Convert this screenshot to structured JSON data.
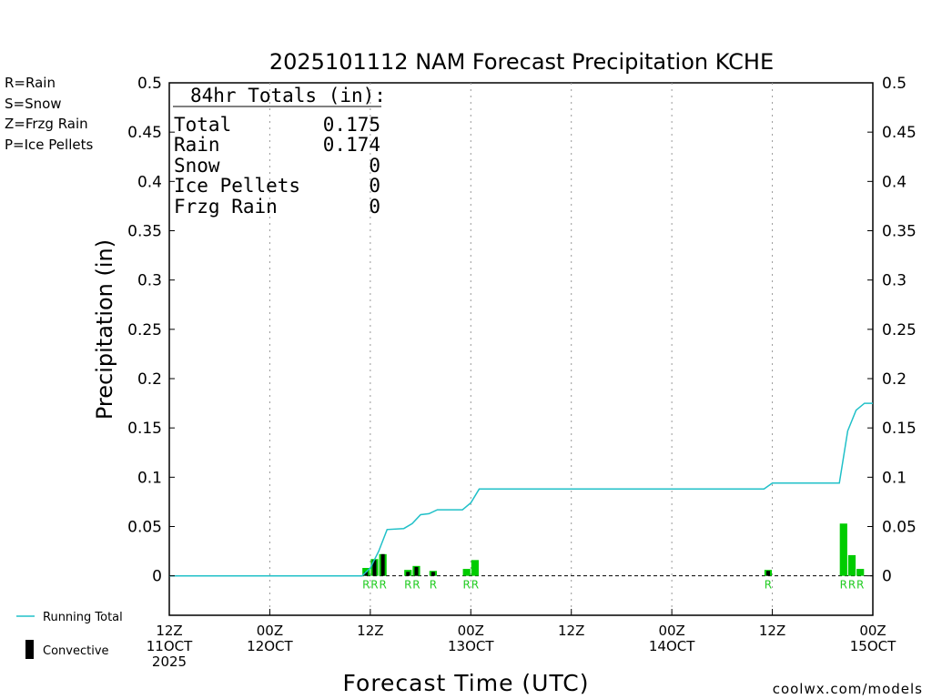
{
  "chart_data": {
    "type": "bar",
    "title": "2025101112 NAM Forecast Precipitation KCHE",
    "xlabel": "Forecast Time (UTC)",
    "ylabel": "Precipitation (in)",
    "ylim": [
      -0.04,
      0.5
    ],
    "xlim": [
      0,
      84
    ],
    "y_ticks": [
      0,
      0.05,
      0.1,
      0.15,
      0.2,
      0.25,
      0.3,
      0.35,
      0.4,
      0.45,
      0.5
    ],
    "y_tick_labels": [
      "0",
      "0.05",
      "0.1",
      "0.15",
      "0.2",
      "0.25",
      "0.3",
      "0.35",
      "0.4",
      "0.45",
      "0.5"
    ],
    "x_ticks": [
      {
        "hour": 0,
        "lines": [
          "12Z",
          "11OCT",
          "2025"
        ]
      },
      {
        "hour": 12,
        "lines": [
          "00Z",
          "12OCT"
        ]
      },
      {
        "hour": 24,
        "lines": [
          "12Z"
        ]
      },
      {
        "hour": 36,
        "lines": [
          "00Z",
          "13OCT"
        ]
      },
      {
        "hour": 48,
        "lines": [
          "12Z"
        ]
      },
      {
        "hour": 60,
        "lines": [
          "00Z",
          "14OCT"
        ]
      },
      {
        "hour": 72,
        "lines": [
          "12Z"
        ]
      },
      {
        "hour": 84,
        "lines": [
          "00Z",
          "15OCT"
        ]
      }
    ],
    "legend_types": [
      {
        "label": "R=Rain",
        "color": "#22cc22"
      },
      {
        "label": "S=Snow",
        "color": "#3355ee"
      },
      {
        "label": "Z=Frzg Rain",
        "color": "#ff8833"
      },
      {
        "label": "P=Ice Pellets",
        "color": "#ee22aa"
      }
    ],
    "legend_series": [
      {
        "label": "Running Total",
        "color": "#20c0c8"
      },
      {
        "label": "Convective",
        "color": "#000000"
      }
    ],
    "totals": {
      "heading": "84hr Totals (in):",
      "rows": [
        {
          "label": "Total",
          "value": "0.175"
        },
        {
          "label": "Rain",
          "value": "0.174"
        },
        {
          "label": "Snow",
          "value": "0"
        },
        {
          "label": "Ice Pellets",
          "value": "0"
        },
        {
          "label": "Frzg Rain",
          "value": "0"
        }
      ]
    },
    "colors": {
      "rain": "#00cc00",
      "convective": "#000000",
      "running_total": "#20c0c8",
      "grid": "#999999"
    },
    "series": [
      {
        "name": "Precipitation (Rain)",
        "hours": [
          24,
          25,
          26,
          29,
          30,
          32,
          36,
          37,
          72,
          81,
          82,
          83
        ],
        "values": [
          0.008,
          0.017,
          0.022,
          0.006,
          0.01,
          0.005,
          0.007,
          0.016,
          0.006,
          0.053,
          0.021,
          0.007
        ],
        "ptype": [
          "R",
          "R",
          "R",
          "R",
          "R",
          "R",
          "R",
          "R",
          "R",
          "R",
          "R",
          "R"
        ]
      },
      {
        "name": "Convective",
        "hours": [
          24,
          25,
          26,
          29,
          30,
          32,
          72
        ],
        "values": [
          0.004,
          0.016,
          0.022,
          0.004,
          0.009,
          0.004,
          0.005
        ]
      },
      {
        "name": "Running Total",
        "hours": [
          0,
          23,
          24,
          25,
          26,
          28,
          29,
          30,
          31,
          32,
          35,
          36,
          37,
          71,
          72,
          80,
          81,
          82,
          83,
          84
        ],
        "values": [
          0,
          0,
          0.008,
          0.025,
          0.047,
          0.048,
          0.053,
          0.062,
          0.063,
          0.067,
          0.067,
          0.074,
          0.088,
          0.088,
          0.094,
          0.094,
          0.147,
          0.168,
          0.175,
          0.175
        ]
      }
    ]
  },
  "footer": {
    "credit": "coolwx.com/models"
  }
}
